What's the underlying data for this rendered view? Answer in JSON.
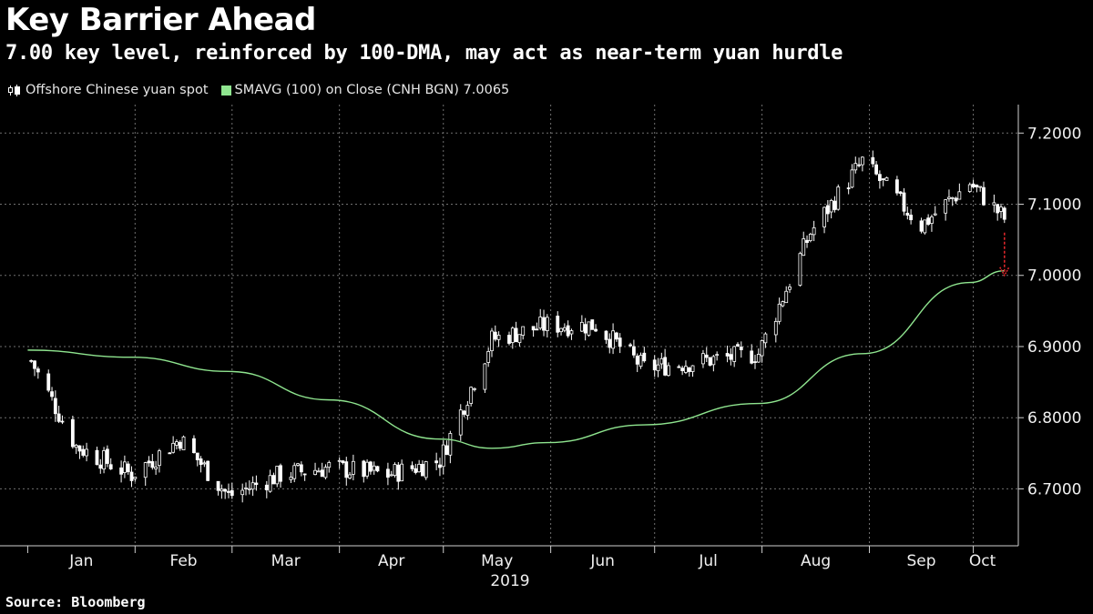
{
  "title": "Key Barrier Ahead",
  "subtitle": "7.00 key level, reinforced by 100-DMA, may act as near-term yuan hurdle",
  "legend": {
    "series1": "Offshore Chinese yuan spot",
    "series2": "SMAVG (100)  on Close (CNH BGN) 7.0065"
  },
  "source": "Source: Bloomberg",
  "colors": {
    "background": "#000000",
    "candle": "#ffffff",
    "sma": "#8fe58f",
    "grid": "#6f6f6f",
    "arrow": "#d9262a"
  },
  "chart_data": {
    "type": "line",
    "xlabel": "2019",
    "ylim": [
      6.62,
      7.24
    ],
    "grid": true,
    "legend_position": "top-left",
    "x_ticks": [
      "Jan",
      "Feb",
      "Mar",
      "Apr",
      "May",
      "Jun",
      "Jul",
      "Aug",
      "Sep",
      "Oct"
    ],
    "y_ticks": [
      "6.7000",
      "6.8000",
      "6.9000",
      "7.0000",
      "7.1000",
      "7.2000"
    ],
    "series": [
      {
        "name": "Offshore Chinese yuan spot",
        "style": "candlestick",
        "approx_monthly_close": [
          {
            "date": "2019-01-02",
            "value": 6.88
          },
          {
            "date": "2019-01-15",
            "value": 6.76
          },
          {
            "date": "2019-01-31",
            "value": 6.72
          },
          {
            "date": "2019-02-14",
            "value": 6.77
          },
          {
            "date": "2019-02-28",
            "value": 6.69
          },
          {
            "date": "2019-03-15",
            "value": 6.72
          },
          {
            "date": "2019-03-29",
            "value": 6.73
          },
          {
            "date": "2019-04-15",
            "value": 6.72
          },
          {
            "date": "2019-04-30",
            "value": 6.74
          },
          {
            "date": "2019-05-15",
            "value": 6.91
          },
          {
            "date": "2019-05-31",
            "value": 6.93
          },
          {
            "date": "2019-06-14",
            "value": 6.93
          },
          {
            "date": "2019-06-28",
            "value": 6.87
          },
          {
            "date": "2019-07-15",
            "value": 6.88
          },
          {
            "date": "2019-07-31",
            "value": 6.89
          },
          {
            "date": "2019-08-15",
            "value": 7.06
          },
          {
            "date": "2019-08-30",
            "value": 7.16
          },
          {
            "date": "2019-09-16",
            "value": 7.07
          },
          {
            "date": "2019-09-30",
            "value": 7.13
          },
          {
            "date": "2019-10-10",
            "value": 7.08
          }
        ]
      },
      {
        "name": "SMAVG (100)  on Close (CNH BGN) 7.0065",
        "style": "line",
        "approx_points": [
          {
            "date": "2019-01-01",
            "value": 6.895
          },
          {
            "date": "2019-01-31",
            "value": 6.885
          },
          {
            "date": "2019-02-28",
            "value": 6.865
          },
          {
            "date": "2019-03-29",
            "value": 6.825
          },
          {
            "date": "2019-04-30",
            "value": 6.77
          },
          {
            "date": "2019-05-15",
            "value": 6.757
          },
          {
            "date": "2019-05-31",
            "value": 6.765
          },
          {
            "date": "2019-06-28",
            "value": 6.79
          },
          {
            "date": "2019-07-31",
            "value": 6.82
          },
          {
            "date": "2019-08-30",
            "value": 6.89
          },
          {
            "date": "2019-09-30",
            "value": 6.99
          },
          {
            "date": "2019-10-10",
            "value": 7.0065
          }
        ]
      }
    ],
    "annotation": "red dashed arrow pointing down to the 7.00 level"
  }
}
